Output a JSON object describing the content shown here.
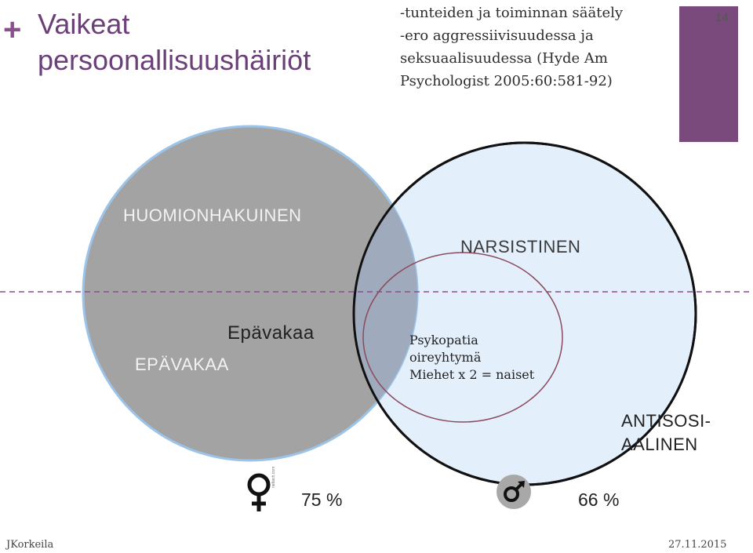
{
  "header": {
    "plus": "+",
    "title": "Vaikeat persoonallisuushäiriöt",
    "subtitle_lines": [
      "-tunteiden ja toiminnan säätely",
      "-ero aggressiivisuudessa ja",
      "seksuaalisuudessa (Hyde Am",
      "Psychologist 2005:60:581-92)"
    ],
    "page_number": "14"
  },
  "diagram": {
    "labels": {
      "huomionhakuinen": "HUOMIONHAKUINEN",
      "narsistinen": "NARSISTINEN",
      "epavakaa_upper": "EPÄVAKAA",
      "epavakaa_lower": "Epävakaa",
      "antisosiaalinen_line1": "ANTISOSI-",
      "antisosiaalinen_line2": "AALINEN"
    },
    "psykopatia_lines": [
      "Psykopatia",
      "oireyhtymä",
      "Miehet x 2 = naiset"
    ],
    "female_icon": "female-symbol-icon",
    "female_credit": "nettach.com",
    "female_percent": "75 %",
    "male_icon": "male-symbol-icon",
    "male_percent": "66 %",
    "colors": {
      "grey_circle": "#a3a3a3",
      "blue_circle": "#e3effb",
      "purple_accent": "#7a4a7c",
      "inner_circle_stroke": "#8a4a5c",
      "dash_line": "#8a4f8e"
    }
  },
  "footer": {
    "author": "JKorkeila",
    "date": "27.11.2015"
  }
}
